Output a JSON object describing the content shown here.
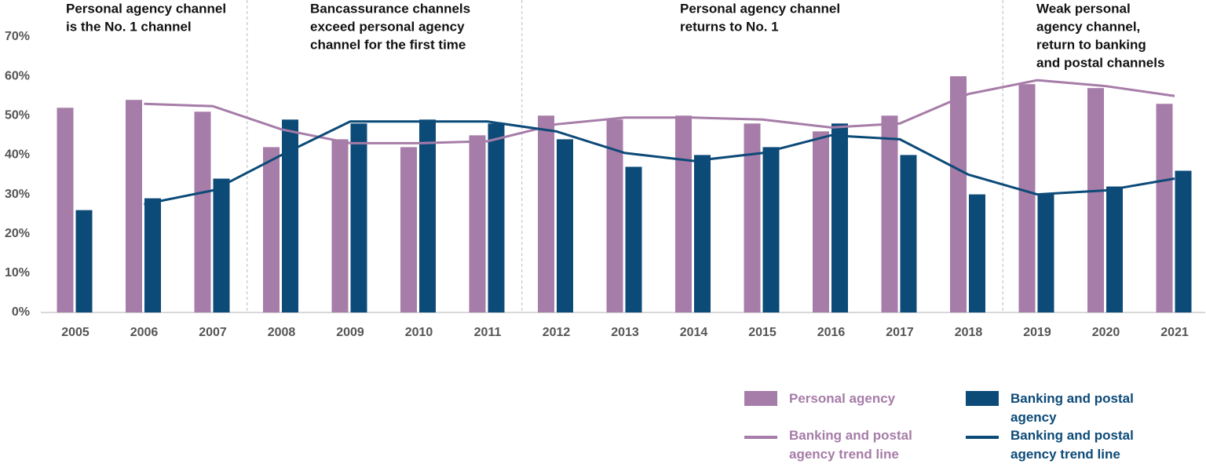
{
  "chart_data": {
    "type": "bar",
    "categories": [
      "2005",
      "2006",
      "2007",
      "2008",
      "2009",
      "2010",
      "2011",
      "2012",
      "2013",
      "2014",
      "2015",
      "2016",
      "2017",
      "2018",
      "2019",
      "2020",
      "2021"
    ],
    "series": [
      {
        "name": "Personal agency",
        "kind": "bar",
        "color": "#a67ca8",
        "values": [
          52,
          54,
          51,
          42,
          44,
          42,
          45,
          50,
          49,
          50,
          48,
          46,
          50,
          60,
          58,
          57,
          53
        ]
      },
      {
        "name": "Banking and postal agency",
        "kind": "bar",
        "color": "#0c4a78",
        "values": [
          26,
          29,
          34,
          49,
          48,
          49,
          48,
          44,
          37,
          40,
          42,
          48,
          40,
          30,
          30,
          32,
          36
        ]
      },
      {
        "name": "Banking and postal agency trend line",
        "kind": "line",
        "color": "#a67ca8",
        "values": [
          null,
          53,
          52.4,
          46.5,
          43,
          43,
          43.5,
          47.8,
          49.5,
          49.5,
          49,
          47,
          48,
          55.5,
          59,
          57.5,
          55
        ]
      },
      {
        "name": "Banking and postal agency trend line",
        "kind": "line",
        "color": "#0c4a78",
        "values": [
          null,
          27.5,
          31,
          40,
          48.5,
          48.5,
          48.5,
          46,
          40.5,
          38.5,
          40.5,
          45,
          44,
          35,
          30,
          31,
          34
        ]
      }
    ],
    "ylim": [
      0,
      70
    ],
    "yticks": [
      {
        "value": 0,
        "label": "0%"
      },
      {
        "value": 10,
        "label": "10%"
      },
      {
        "value": 20,
        "label": "20%"
      },
      {
        "value": 30,
        "label": "30%"
      },
      {
        "value": 40,
        "label": "40%"
      },
      {
        "value": 50,
        "label": "50%"
      },
      {
        "value": 60,
        "label": "60%"
      },
      {
        "value": 70,
        "label": "70%"
      }
    ],
    "annotations": [
      [
        "Personal agency channel",
        "is the No. 1 channel"
      ],
      [
        "Bancassurance channels",
        "exceed personal agency",
        "channel for the first time"
      ],
      [
        "Personal agency channel",
        "returns to No. 1"
      ],
      [
        "Weak personal",
        "agency channel,",
        "return to banking",
        "and postal channels"
      ]
    ]
  }
}
